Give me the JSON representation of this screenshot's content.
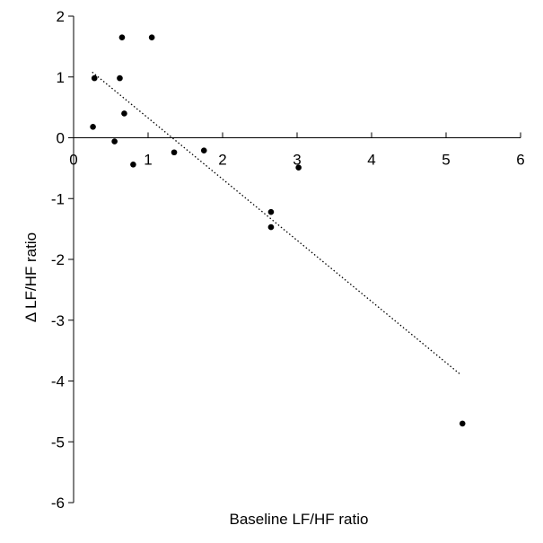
{
  "chart_data": {
    "type": "scatter",
    "title": "",
    "xlabel": "Baseline LF/HF ratio",
    "ylabel": "Δ LF/HF ratio",
    "xlim": [
      0,
      6
    ],
    "ylim": [
      -6,
      2
    ],
    "xticks": [
      0,
      1,
      2,
      3,
      4,
      5,
      6
    ],
    "yticks": [
      2,
      1,
      0,
      -1,
      -2,
      -3,
      -4,
      -5,
      -6
    ],
    "grid": false,
    "series": [
      {
        "name": "subjects",
        "points": [
          {
            "x": 0.65,
            "y": 1.65
          },
          {
            "x": 1.05,
            "y": 1.65
          },
          {
            "x": 0.28,
            "y": 0.98
          },
          {
            "x": 0.62,
            "y": 0.98
          },
          {
            "x": 0.68,
            "y": 0.4
          },
          {
            "x": 0.26,
            "y": 0.18
          },
          {
            "x": 0.55,
            "y": -0.06
          },
          {
            "x": 0.8,
            "y": -0.44
          },
          {
            "x": 1.35,
            "y": -0.24
          },
          {
            "x": 1.75,
            "y": -0.21
          },
          {
            "x": 3.02,
            "y": -0.49
          },
          {
            "x": 2.65,
            "y": -1.22
          },
          {
            "x": 2.65,
            "y": -1.47
          },
          {
            "x": 5.22,
            "y": -4.7
          }
        ]
      }
    ],
    "trendline": {
      "style": "dotted",
      "x1": 0.25,
      "y1": 1.08,
      "x2": 5.2,
      "y2": -3.9
    }
  }
}
